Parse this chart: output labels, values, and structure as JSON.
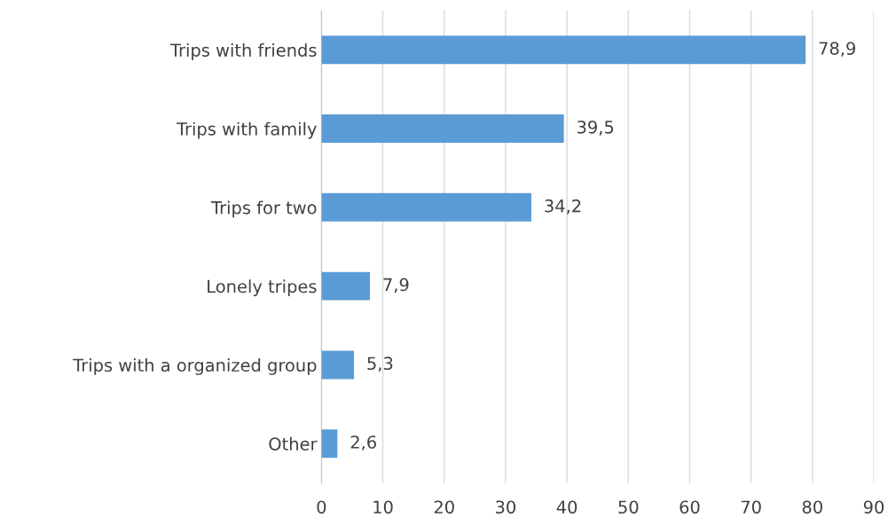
{
  "chart_data": {
    "type": "bar",
    "orientation": "horizontal",
    "categories": [
      "Trips with friends",
      "Trips with family",
      "Trips for two",
      "Lonely tripes",
      "Trips with a organized group",
      "Other"
    ],
    "values": [
      78.9,
      39.5,
      34.2,
      7.9,
      5.3,
      2.6
    ],
    "value_labels": [
      "78,9",
      "39,5",
      "34,2",
      "7,9",
      "5,3",
      "2,6"
    ],
    "color": "#5b9bd5",
    "xlim": [
      0,
      90
    ],
    "xticks": [
      0,
      10,
      20,
      30,
      40,
      50,
      60,
      70,
      80,
      90
    ],
    "grid": "x"
  }
}
